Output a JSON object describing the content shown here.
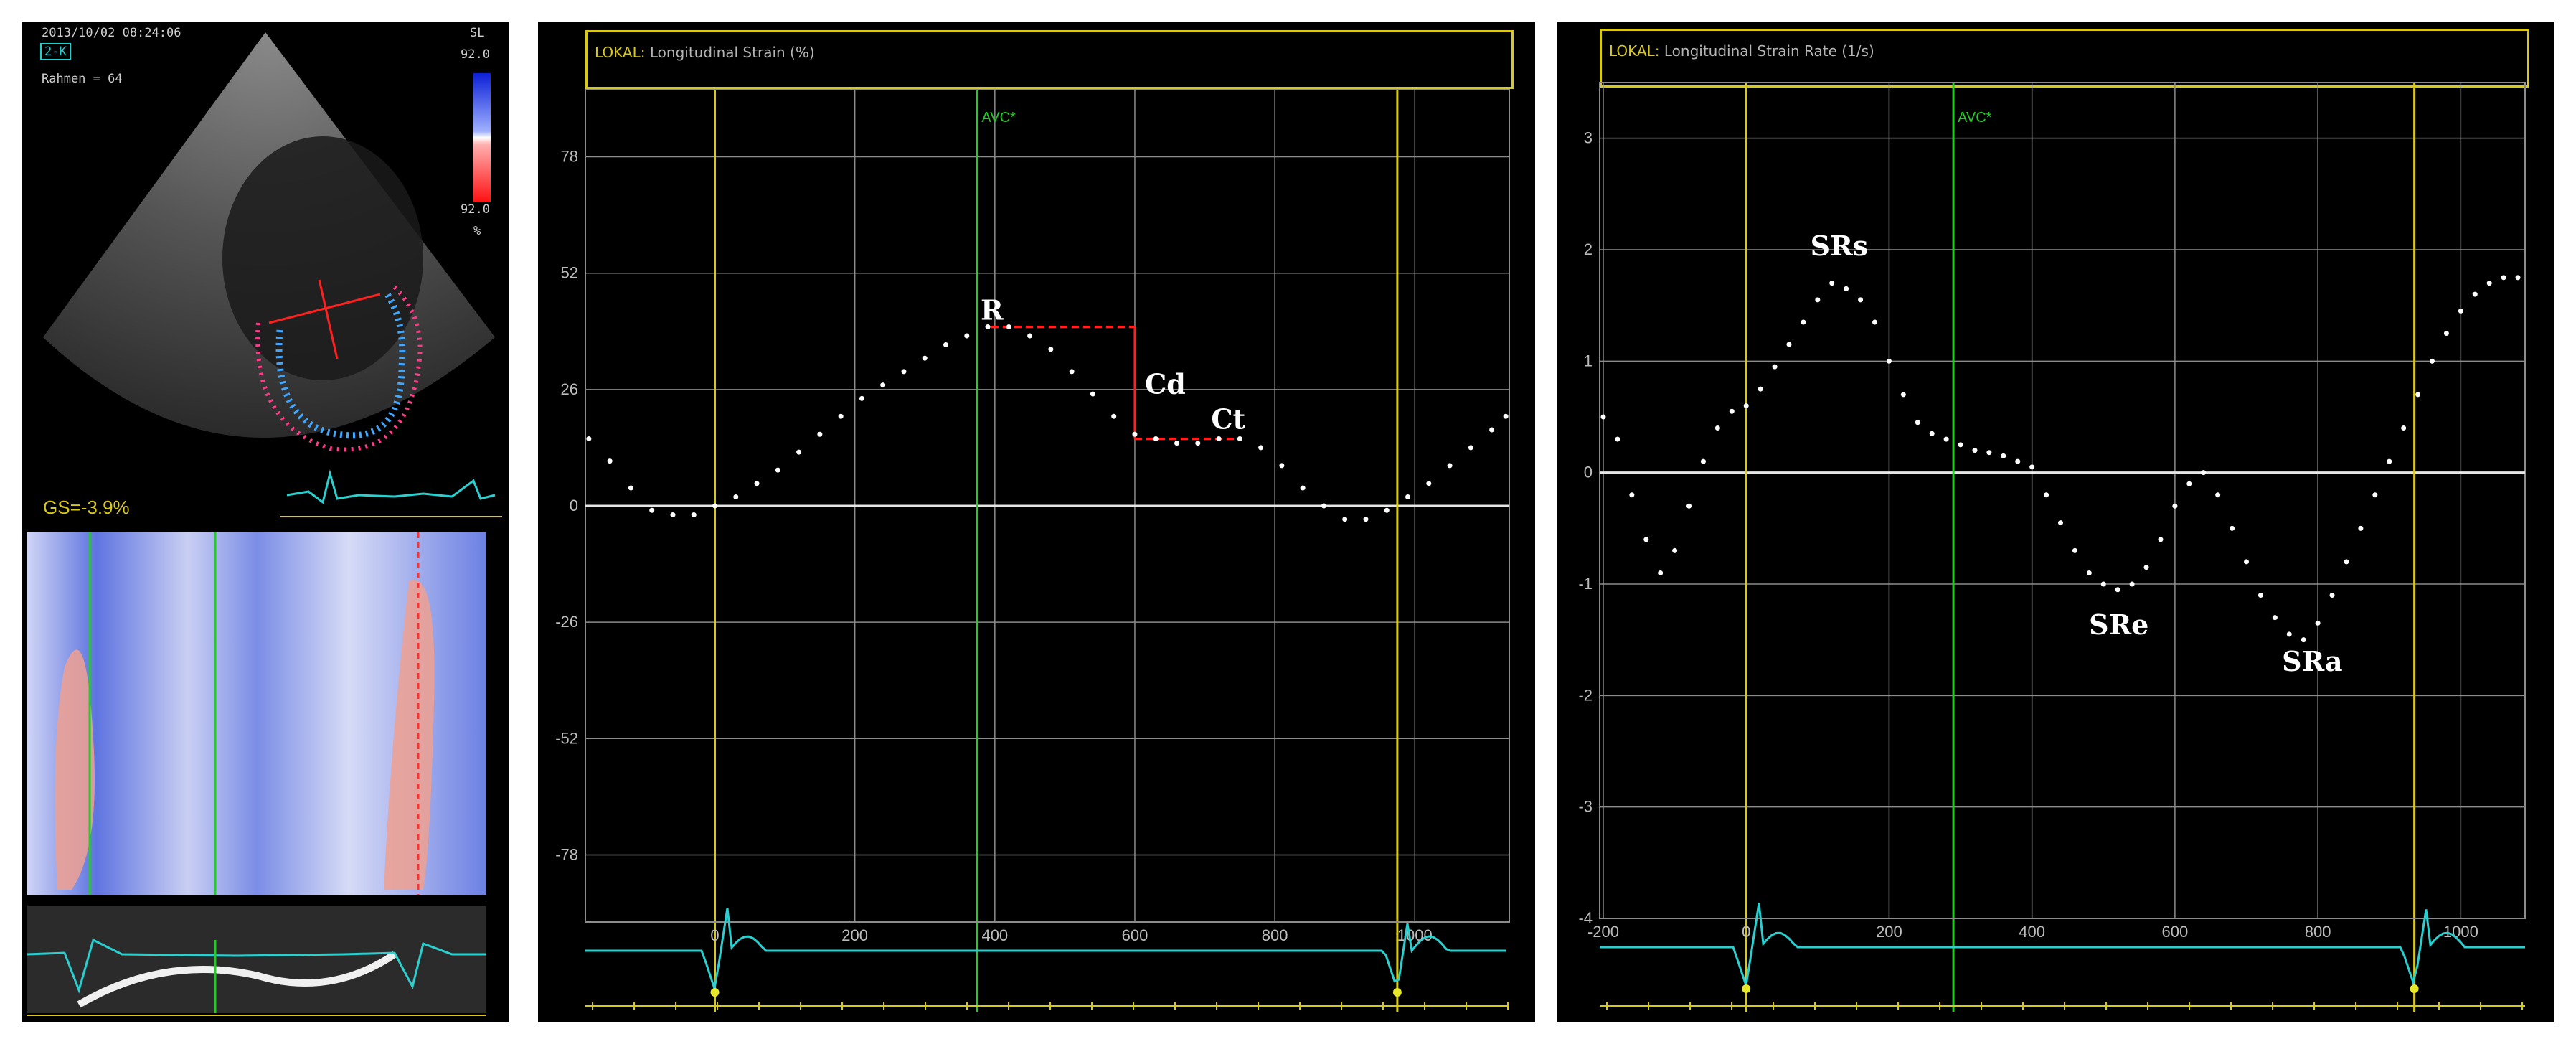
{
  "echo": {
    "timestamp": "2013/10/02 08:24:06",
    "view": "2-K",
    "frame": "Rahmen = 64",
    "scale_label": "SL",
    "scale_max": "92.0",
    "scale_min": "92.0",
    "scale_unit": "%",
    "gs": "GS=-3.9%"
  },
  "strain": {
    "header_prefix": "LOKAL:",
    "header_title": "Longitudinal Strain (%)",
    "avc_label": "AVC*",
    "annotations": {
      "r": "R",
      "cd": "Cd",
      "ct": "Ct"
    },
    "x_ticks": [
      "0",
      "200",
      "400",
      "600",
      "800",
      "1000"
    ],
    "y_ticks": [
      "78",
      "52",
      "26",
      "0",
      "-26",
      "-52",
      "-78"
    ]
  },
  "rate": {
    "header_prefix": "LOKAL:",
    "header_title": "Longitudinal Strain Rate (1/s)",
    "avc_label": "AVC*",
    "annotations": {
      "srs": "SRs",
      "sre": "SRe",
      "sra": "SRa"
    },
    "x_ticks": [
      "-200",
      "0",
      "200",
      "400",
      "600",
      "800",
      "1000"
    ],
    "y_ticks": [
      "3",
      "2",
      "1",
      "0",
      "-1",
      "-2",
      "-3",
      "-4"
    ]
  },
  "chart_data": [
    {
      "type": "scatter",
      "title": "Longitudinal Strain (%)",
      "xlabel": "",
      "ylabel": "",
      "xlim": [
        -185,
        1135
      ],
      "ylim": [
        -93,
        93
      ],
      "x_ticks": [
        0,
        200,
        400,
        600,
        800,
        1000
      ],
      "y_ticks": [
        78,
        52,
        26,
        0,
        -26,
        -52,
        -78
      ],
      "markers": {
        "ED_start": 0,
        "AVC": 375,
        "ED_end": 975
      },
      "series": [
        {
          "values": [
            [
              -180,
              15
            ],
            [
              -150,
              10
            ],
            [
              -120,
              4
            ],
            [
              -90,
              -1
            ],
            [
              -60,
              -2
            ],
            [
              -30,
              -2
            ],
            [
              0,
              0
            ],
            [
              30,
              2
            ],
            [
              60,
              5
            ],
            [
              90,
              8
            ],
            [
              120,
              12
            ],
            [
              150,
              16
            ],
            [
              180,
              20
            ],
            [
              210,
              24
            ],
            [
              240,
              27
            ],
            [
              270,
              30
            ],
            [
              300,
              33
            ],
            [
              330,
              36
            ],
            [
              360,
              38
            ],
            [
              390,
              40
            ],
            [
              420,
              40
            ],
            [
              450,
              38
            ],
            [
              480,
              35
            ],
            [
              510,
              30
            ],
            [
              540,
              25
            ],
            [
              570,
              20
            ],
            [
              600,
              16
            ],
            [
              630,
              15
            ],
            [
              660,
              14
            ],
            [
              690,
              14
            ],
            [
              720,
              15
            ],
            [
              750,
              15
            ],
            [
              780,
              13
            ],
            [
              810,
              9
            ],
            [
              840,
              4
            ],
            [
              870,
              0
            ],
            [
              900,
              -3
            ],
            [
              930,
              -3
            ],
            [
              960,
              -1
            ],
            [
              990,
              2
            ],
            [
              1020,
              5
            ],
            [
              1050,
              9
            ],
            [
              1080,
              13
            ],
            [
              1110,
              17
            ],
            [
              1130,
              20
            ]
          ]
        }
      ]
    },
    {
      "type": "scatter",
      "title": "Longitudinal Strain Rate (1/s)",
      "xlabel": "",
      "ylabel": "",
      "xlim": [
        -205,
        1090
      ],
      "ylim": [
        -4,
        3.5
      ],
      "x_ticks": [
        -200,
        0,
        200,
        400,
        600,
        800,
        1000
      ],
      "y_ticks": [
        3,
        2,
        1,
        0,
        -1,
        -2,
        -3,
        -4
      ],
      "markers": {
        "ED_start": 0,
        "AVC": 290,
        "ED_end": 935
      },
      "series": [
        {
          "values": [
            [
              -200,
              0.5
            ],
            [
              -180,
              0.3
            ],
            [
              -160,
              -0.2
            ],
            [
              -140,
              -0.6
            ],
            [
              -120,
              -0.9
            ],
            [
              -100,
              -0.7
            ],
            [
              -80,
              -0.3
            ],
            [
              -60,
              0.1
            ],
            [
              -40,
              0.4
            ],
            [
              -20,
              0.55
            ],
            [
              0,
              0.6
            ],
            [
              20,
              0.75
            ],
            [
              40,
              0.95
            ],
            [
              60,
              1.15
            ],
            [
              80,
              1.35
            ],
            [
              100,
              1.55
            ],
            [
              120,
              1.7
            ],
            [
              140,
              1.65
            ],
            [
              160,
              1.55
            ],
            [
              180,
              1.35
            ],
            [
              200,
              1.0
            ],
            [
              220,
              0.7
            ],
            [
              240,
              0.45
            ],
            [
              260,
              0.35
            ],
            [
              280,
              0.3
            ],
            [
              300,
              0.25
            ],
            [
              320,
              0.2
            ],
            [
              340,
              0.18
            ],
            [
              360,
              0.15
            ],
            [
              380,
              0.1
            ],
            [
              400,
              0.05
            ],
            [
              420,
              -0.2
            ],
            [
              440,
              -0.45
            ],
            [
              460,
              -0.7
            ],
            [
              480,
              -0.9
            ],
            [
              500,
              -1.0
            ],
            [
              520,
              -1.05
            ],
            [
              540,
              -1.0
            ],
            [
              560,
              -0.85
            ],
            [
              580,
              -0.6
            ],
            [
              600,
              -0.3
            ],
            [
              620,
              -0.1
            ],
            [
              640,
              0.0
            ],
            [
              660,
              -0.2
            ],
            [
              680,
              -0.5
            ],
            [
              700,
              -0.8
            ],
            [
              720,
              -1.1
            ],
            [
              740,
              -1.3
            ],
            [
              760,
              -1.45
            ],
            [
              780,
              -1.5
            ],
            [
              800,
              -1.35
            ],
            [
              820,
              -1.1
            ],
            [
              840,
              -0.8
            ],
            [
              860,
              -0.5
            ],
            [
              880,
              -0.2
            ],
            [
              900,
              0.1
            ],
            [
              920,
              0.4
            ],
            [
              940,
              0.7
            ],
            [
              960,
              1.0
            ],
            [
              980,
              1.25
            ],
            [
              1000,
              1.45
            ],
            [
              1020,
              1.6
            ],
            [
              1040,
              1.7
            ],
            [
              1060,
              1.75
            ],
            [
              1080,
              1.75
            ]
          ]
        }
      ]
    }
  ]
}
